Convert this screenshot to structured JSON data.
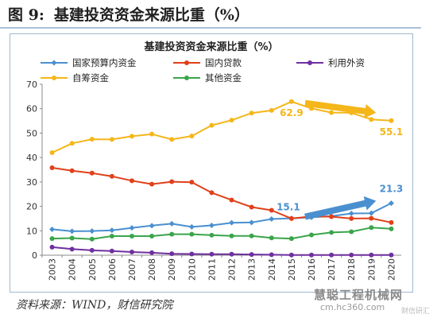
{
  "header": {
    "figure_label": "图 9:",
    "title": "基建投资资金来源比重（%）"
  },
  "source": "资料来源：WIND，财信研究院",
  "watermark": {
    "main": "慧聪工程机械网",
    "sub": "cm.hc360.com",
    "tag": "财信研汇"
  },
  "colors": {
    "national_budget": "#4a90d0",
    "domestic_loans": "#e0401a",
    "foreign_capital": "#7030a0",
    "self_raised": "#f5b61a",
    "other_funds": "#3aa54a"
  },
  "chart_data": {
    "type": "line",
    "title": "基建投资资金来源比重（%）",
    "x": [
      "2003",
      "2004",
      "2005",
      "2006",
      "2007",
      "2008",
      "2009",
      "2010",
      "2011",
      "2012",
      "2013",
      "2014",
      "2015",
      "2016",
      "2017",
      "2018",
      "2019",
      "2020"
    ],
    "ylim": [
      0,
      70
    ],
    "yticks": [
      0,
      10,
      20,
      30,
      40,
      50,
      60,
      70
    ],
    "grid": false,
    "legend_placement": "top",
    "series": [
      {
        "key": "national_budget",
        "name": "国家预算内资金",
        "marker": "diamond",
        "values": [
          10.6,
          9.8,
          9.9,
          10.2,
          11.2,
          12.1,
          12.9,
          11.6,
          12.2,
          13.3,
          13.4,
          14.8,
          15.1,
          15.5,
          16.0,
          17.1,
          17.2,
          21.3
        ]
      },
      {
        "key": "domestic_loans",
        "name": "国内贷款",
        "marker": "circle",
        "values": [
          35.8,
          34.6,
          33.6,
          32.3,
          30.5,
          29.1,
          30.1,
          29.9,
          25.6,
          22.6,
          19.7,
          18.4,
          15.0,
          15.9,
          15.8,
          15.0,
          15.1,
          13.4
        ]
      },
      {
        "key": "foreign_capital",
        "name": "利用外资",
        "marker": "circle",
        "values": [
          3.3,
          2.5,
          2.0,
          1.7,
          1.3,
          1.0,
          0.6,
          0.5,
          0.4,
          0.4,
          0.3,
          0.2,
          0.1,
          0.1,
          0.1,
          0.1,
          0.1,
          0.1
        ]
      },
      {
        "key": "self_raised",
        "name": "自筹资金",
        "marker": "circle",
        "values": [
          42.0,
          45.8,
          47.5,
          47.4,
          48.7,
          49.6,
          47.4,
          48.8,
          53.2,
          55.3,
          58.2,
          59.3,
          62.9,
          60.1,
          58.4,
          58.3,
          55.6,
          55.1
        ]
      },
      {
        "key": "other_funds",
        "name": "其他资金",
        "marker": "circle",
        "values": [
          6.8,
          7.0,
          6.6,
          7.8,
          7.8,
          7.8,
          8.6,
          8.6,
          8.2,
          7.9,
          7.9,
          7.1,
          6.8,
          8.3,
          9.3,
          9.6,
          11.3,
          10.8
        ]
      }
    ],
    "annotations": [
      {
        "text": "62.9",
        "series": "self_raised",
        "x": "2015"
      },
      {
        "text": "55.1",
        "series": "self_raised",
        "x": "2020"
      },
      {
        "text": "15.1",
        "series": "national_budget",
        "x": "2015"
      },
      {
        "text": "21.3",
        "series": "national_budget",
        "x": "2020"
      }
    ],
    "arrows": [
      {
        "series": "self_raised",
        "from": "2016",
        "to": "2019",
        "direction": "down"
      },
      {
        "series": "national_budget",
        "from": "2016",
        "to": "2019",
        "direction": "up"
      }
    ]
  }
}
